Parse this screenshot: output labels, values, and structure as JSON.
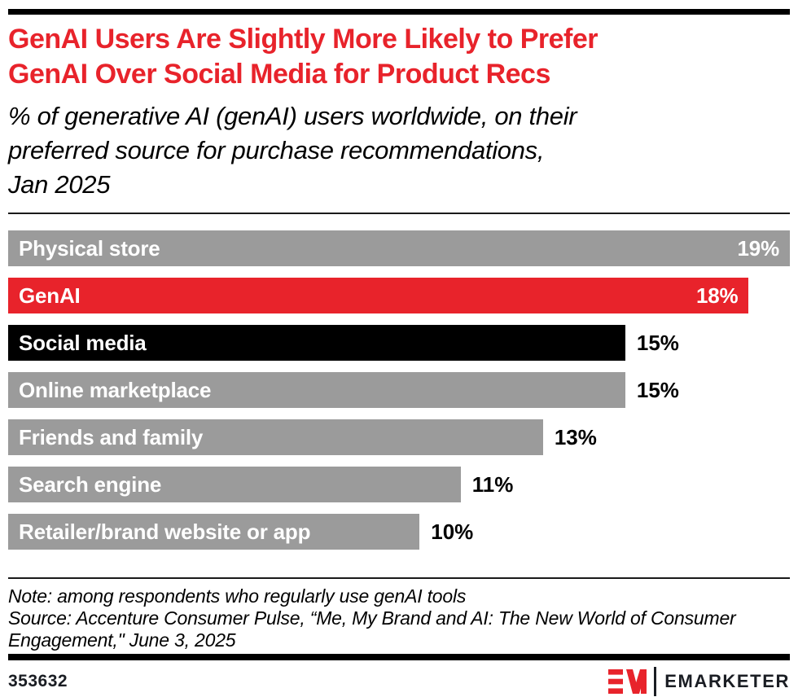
{
  "header": {
    "title": "GenAI Users Are Slightly More Likely to Prefer GenAI Over Social Media for Product Recs",
    "title_lines": [
      "GenAI Users Are Slightly More Likely to Prefer",
      "GenAI Over Social Media for Product Recs"
    ],
    "subtitle": "% of generative AI (genAI) users worldwide, on their preferred source for purchase recommendations, Jan 2025",
    "subtitle_lines": [
      "% of generative AI (genAI) users worldwide, on their",
      "preferred source for purchase recommendations,",
      "Jan 2025"
    ]
  },
  "chart_data": {
    "type": "bar",
    "orientation": "horizontal",
    "title": "GenAI Users Are Slightly More Likely to Prefer GenAI Over Social Media for Product Recs",
    "categories": [
      "Physical store",
      "GenAI",
      "Social media",
      "Online marketplace",
      "Friends and family",
      "Search engine",
      "Retailer/brand website or app"
    ],
    "values": [
      19,
      18,
      15,
      15,
      13,
      11,
      10
    ],
    "value_labels": [
      "19%",
      "18%",
      "15%",
      "15%",
      "13%",
      "11%",
      "10%"
    ],
    "bar_colors": [
      "#9b9b9b",
      "#e8232b",
      "#000000",
      "#9b9b9b",
      "#9b9b9b",
      "#9b9b9b",
      "#9b9b9b"
    ],
    "value_label_position": [
      "inside",
      "inside",
      "outside",
      "outside",
      "outside",
      "outside",
      "outside"
    ],
    "xlim": [
      0,
      19
    ],
    "grid": false,
    "legend": false,
    "unit": "%"
  },
  "notes": {
    "note": "Note: among respondents who regularly use genAI tools",
    "source": "Source: Accenture Consumer Pulse, “Me, My Brand and AI: The New World of Consumer Engagement,\" June 3, 2025",
    "source_lines": [
      "Source: Accenture Consumer Pulse, “Me, My Brand and AI: The New World of Consumer",
      "Engagement,\" June 3, 2025"
    ]
  },
  "footer": {
    "chart_id": "353632",
    "brand": "EMARKETER"
  },
  "colors": {
    "accent_red": "#e8232b",
    "bar_gray": "#9b9b9b",
    "bar_black": "#000000",
    "wordmark_navy": "#1a1d23"
  }
}
